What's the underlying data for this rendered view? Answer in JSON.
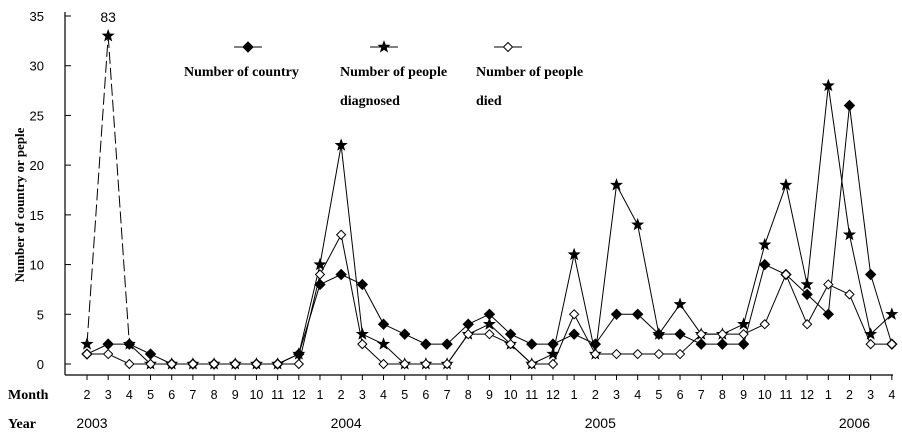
{
  "chart_data": {
    "type": "line",
    "ylabel": "Number of country or peple",
    "ylim": [
      0,
      35
    ],
    "yticks": [
      0,
      5,
      10,
      15,
      20,
      25,
      30,
      35
    ],
    "month_row_label": "Month",
    "year_row_label": "Year",
    "months": [
      "2",
      "3",
      "4",
      "5",
      "6",
      "7",
      "8",
      "9",
      "10",
      "11",
      "12",
      "1",
      "2",
      "3",
      "4",
      "5",
      "6",
      "7",
      "8",
      "9",
      "10",
      "11",
      "12",
      "1",
      "2",
      "3",
      "4",
      "5",
      "6",
      "7",
      "8",
      "9",
      "10",
      "11",
      "12",
      "1",
      "2",
      "3",
      "4"
    ],
    "years": [
      {
        "label": "2003",
        "at_index": 0
      },
      {
        "label": "2004",
        "at_index": 12
      },
      {
        "label": "2005",
        "at_index": 24
      },
      {
        "label": "2006",
        "at_index": 36
      }
    ],
    "annotations": [
      {
        "text": "83",
        "series": 1,
        "index": 1
      }
    ],
    "series": [
      {
        "name": "Number of country",
        "marker": "filled-diamond",
        "values": [
          1,
          2,
          2,
          1,
          0,
          0,
          0,
          0,
          0,
          0,
          1,
          8,
          9,
          8,
          4,
          3,
          2,
          2,
          4,
          5,
          3,
          2,
          2,
          3,
          2,
          5,
          5,
          3,
          3,
          2,
          2,
          2,
          10,
          9,
          7,
          5,
          26,
          9,
          2
        ]
      },
      {
        "name": "Number of people diagnosed",
        "marker": "star",
        "values": [
          2,
          33,
          2,
          0,
          0,
          0,
          0,
          0,
          0,
          0,
          1,
          10,
          22,
          3,
          2,
          0,
          0,
          0,
          3,
          4,
          2,
          0,
          1,
          11,
          1,
          18,
          14,
          3,
          6,
          3,
          3,
          4,
          12,
          18,
          8,
          28,
          13,
          3,
          5
        ]
      },
      {
        "name": "Number of people died",
        "marker": "open-diamond",
        "values": [
          1,
          1,
          0,
          0,
          0,
          0,
          0,
          0,
          0,
          0,
          0,
          9,
          13,
          2,
          0,
          0,
          0,
          0,
          3,
          3,
          2,
          0,
          0,
          5,
          1,
          1,
          1,
          1,
          1,
          3,
          3,
          3,
          4,
          9,
          4,
          8,
          7,
          2,
          2
        ]
      }
    ],
    "legend": {
      "placement": "top-center",
      "labels": [
        [
          "Number of country"
        ],
        [
          "Number of people",
          "diagnosed"
        ],
        [
          "Number of people",
          "died"
        ]
      ]
    }
  }
}
